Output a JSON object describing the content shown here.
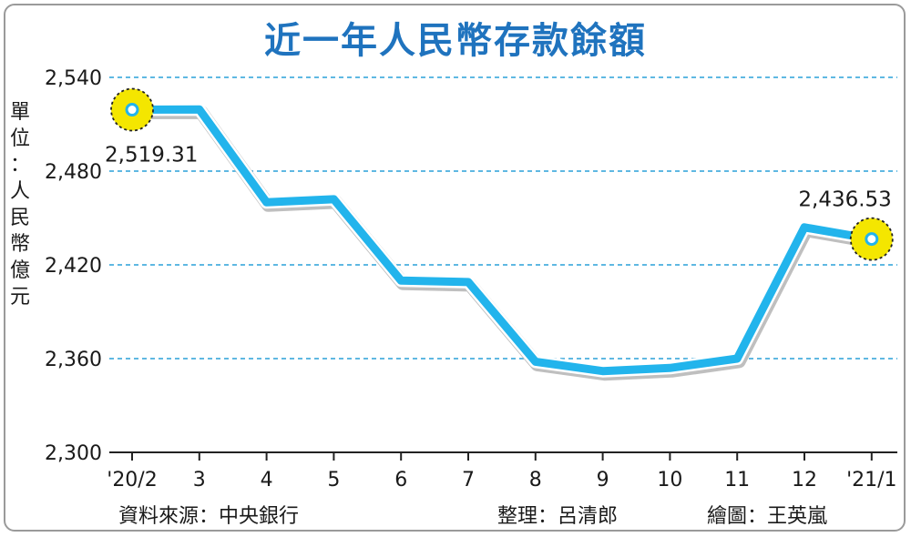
{
  "chart_data": {
    "type": "line",
    "title": "近一年人民幣存款餘額",
    "ylabel": "單位：人民幣億元",
    "categories": [
      "'20/2",
      "3",
      "4",
      "5",
      "6",
      "7",
      "8",
      "9",
      "10",
      "11",
      "12",
      "'21/1"
    ],
    "series": [
      {
        "values": [
          2519.31,
          2519.5,
          2460,
          2462,
          2410,
          2409,
          2358,
          2352,
          2354,
          2360,
          2444,
          2436.53
        ]
      }
    ],
    "y_ticks": [
      2300,
      2360,
      2420,
      2480,
      2540
    ],
    "y_tick_labels": [
      "2,300",
      "2,360",
      "2,420",
      "2,480",
      "2,540"
    ],
    "ylim": [
      2300,
      2540
    ],
    "data_labels": [
      {
        "index": 0,
        "text": "2,519.31"
      },
      {
        "index": 11,
        "text": "2,436.53"
      }
    ],
    "highlight_points": [
      0,
      11
    ],
    "grid": "horizontal-dashed",
    "colors": {
      "line": "#22b4ec",
      "line_outline": "#bfbfbf",
      "grid": "#2aa0d8",
      "title": "#1f73be",
      "highlight": "#f4e600"
    }
  },
  "footer": {
    "source": "資料來源：中央銀行",
    "editor": "整理：呂清郎",
    "illustrator": "繪圖：王英嵐"
  }
}
